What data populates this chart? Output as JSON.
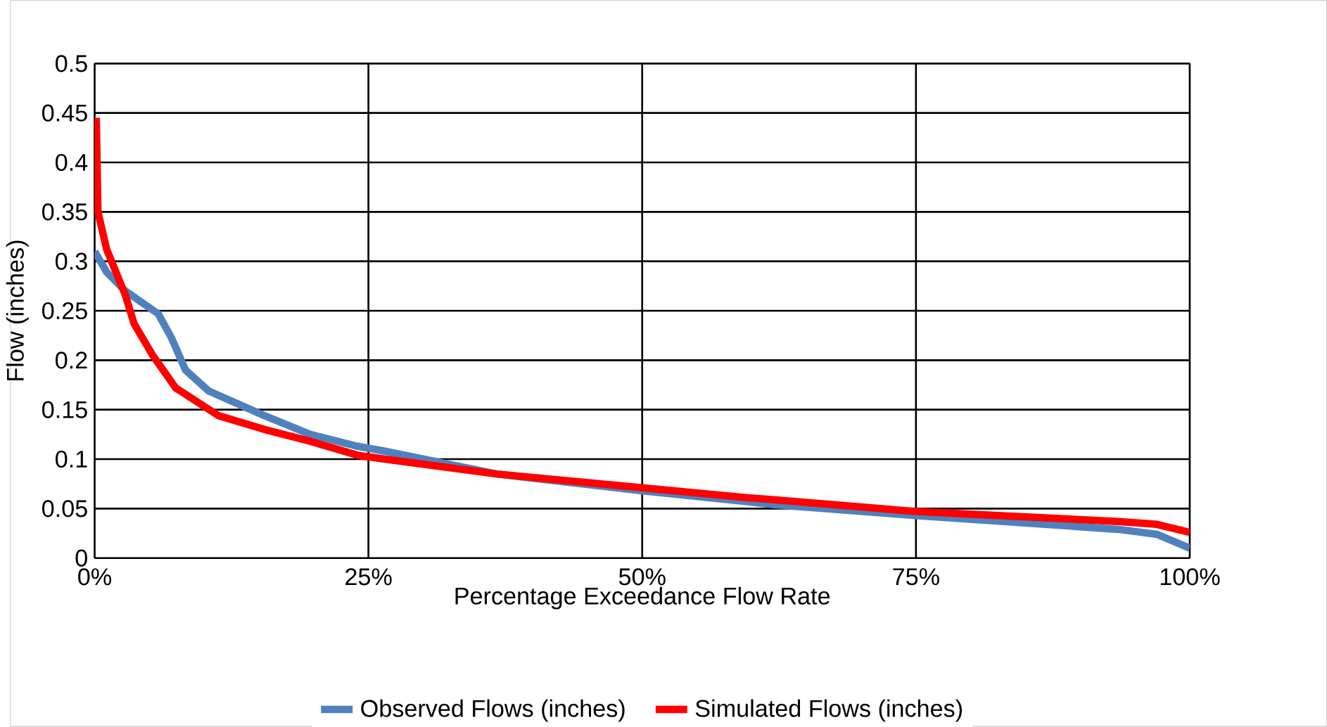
{
  "chart_data": {
    "type": "line",
    "xlabel": "Percentage Exceedance Flow Rate",
    "ylabel": "Flow (inches)",
    "xlim": [
      0,
      100
    ],
    "xticks": [
      {
        "value": 0,
        "label": "0%"
      },
      {
        "value": 25,
        "label": "25%"
      },
      {
        "value": 50,
        "label": "50%"
      },
      {
        "value": 75,
        "label": "75%"
      },
      {
        "value": 100,
        "label": "100%"
      }
    ],
    "ylim": [
      0,
      0.5
    ],
    "yticks": [
      0,
      0.05,
      0.1,
      0.15,
      0.2,
      0.25,
      0.3,
      0.35,
      0.4,
      0.45,
      0.5
    ],
    "grid": true,
    "legend": "bottom",
    "marker": "none",
    "line_style": "solid",
    "series": [
      {
        "name": "Observed Flows (inches)",
        "color": "#4f81bd",
        "x": [
          0,
          1.1,
          2.8,
          5.8,
          7,
          8.3,
          10.4,
          15.5,
          19.7,
          24,
          26.5,
          36.7,
          50,
          59.6,
          62,
          75,
          93.5,
          97,
          100
        ],
        "values": [
          0.31,
          0.289,
          0.27,
          0.247,
          0.223,
          0.19,
          0.169,
          0.144,
          0.125,
          0.113,
          0.108,
          0.085,
          0.068,
          0.057,
          0.054,
          0.043,
          0.029,
          0.024,
          0.01
        ]
      },
      {
        "name": "Simulated Flows (inches)",
        "color": "#ff0000",
        "x": [
          0.15,
          0.3,
          1.1,
          2.8,
          3.6,
          5.3,
          7.4,
          11.3,
          15.5,
          19.7,
          24,
          26.5,
          36.7,
          50,
          59.6,
          62,
          75,
          93.5,
          97,
          100
        ],
        "values": [
          0.445,
          0.35,
          0.312,
          0.266,
          0.237,
          0.205,
          0.172,
          0.144,
          0.13,
          0.118,
          0.104,
          0.1,
          0.085,
          0.071,
          0.061,
          0.059,
          0.047,
          0.037,
          0.034,
          0.026
        ]
      }
    ]
  }
}
